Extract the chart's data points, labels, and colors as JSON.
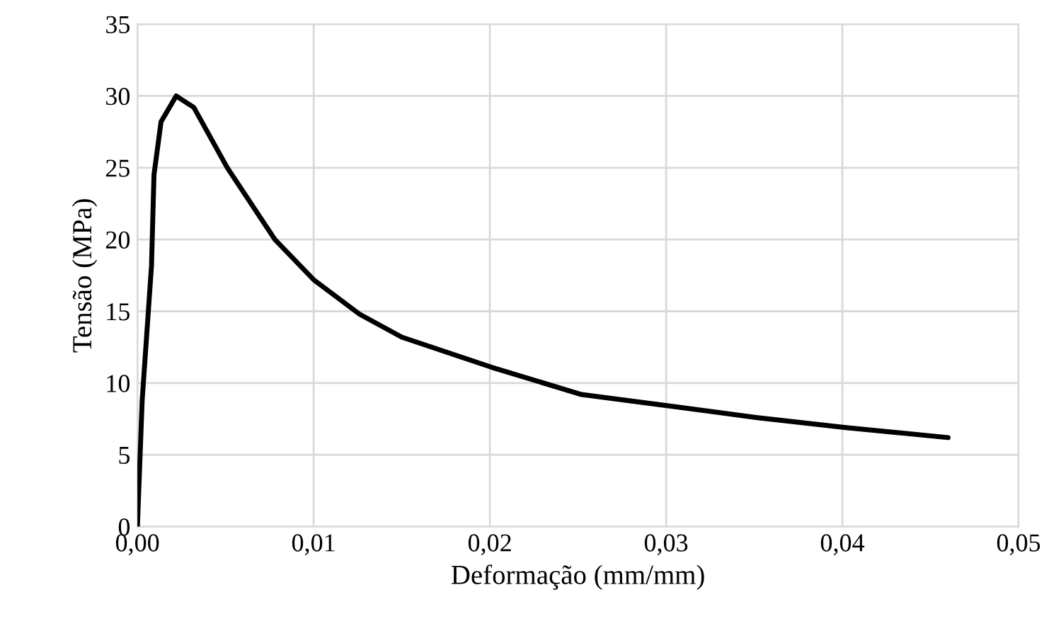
{
  "chart_data": {
    "type": "line",
    "xlabel": "Deformação (mm/mm)",
    "ylabel": "Tensão (MPa)",
    "series": [
      {
        "color": "#000000",
        "x": [
          0,
          0.00027,
          0.0008,
          0.00094,
          0.00134,
          0.0022,
          0.0032,
          0.0051,
          0.0078,
          0.01,
          0.0126,
          0.015,
          0.0201,
          0.0252,
          0.0302,
          0.0351,
          0.0402,
          0.046
        ],
        "values": [
          0,
          8.8,
          18.2,
          24.5,
          28.2,
          30.0,
          29.2,
          25.0,
          20.0,
          17.2,
          14.8,
          13.2,
          11.1,
          9.2,
          8.4,
          7.6,
          6.9,
          6.2
        ]
      }
    ],
    "xlim": [
      0,
      0.05
    ],
    "ylim": [
      0,
      35
    ],
    "xticks": [
      {
        "value": 0,
        "label": "0,00"
      },
      {
        "value": 0.01,
        "label": "0,01"
      },
      {
        "value": 0.02,
        "label": "0,02"
      },
      {
        "value": 0.03,
        "label": "0,03"
      },
      {
        "value": 0.04,
        "label": "0,04"
      },
      {
        "value": 0.05,
        "label": "0,05"
      }
    ],
    "yticks": [
      0,
      5,
      10,
      15,
      20,
      25,
      30,
      35
    ],
    "grid": true,
    "marker": "none",
    "line_style": "solid"
  }
}
